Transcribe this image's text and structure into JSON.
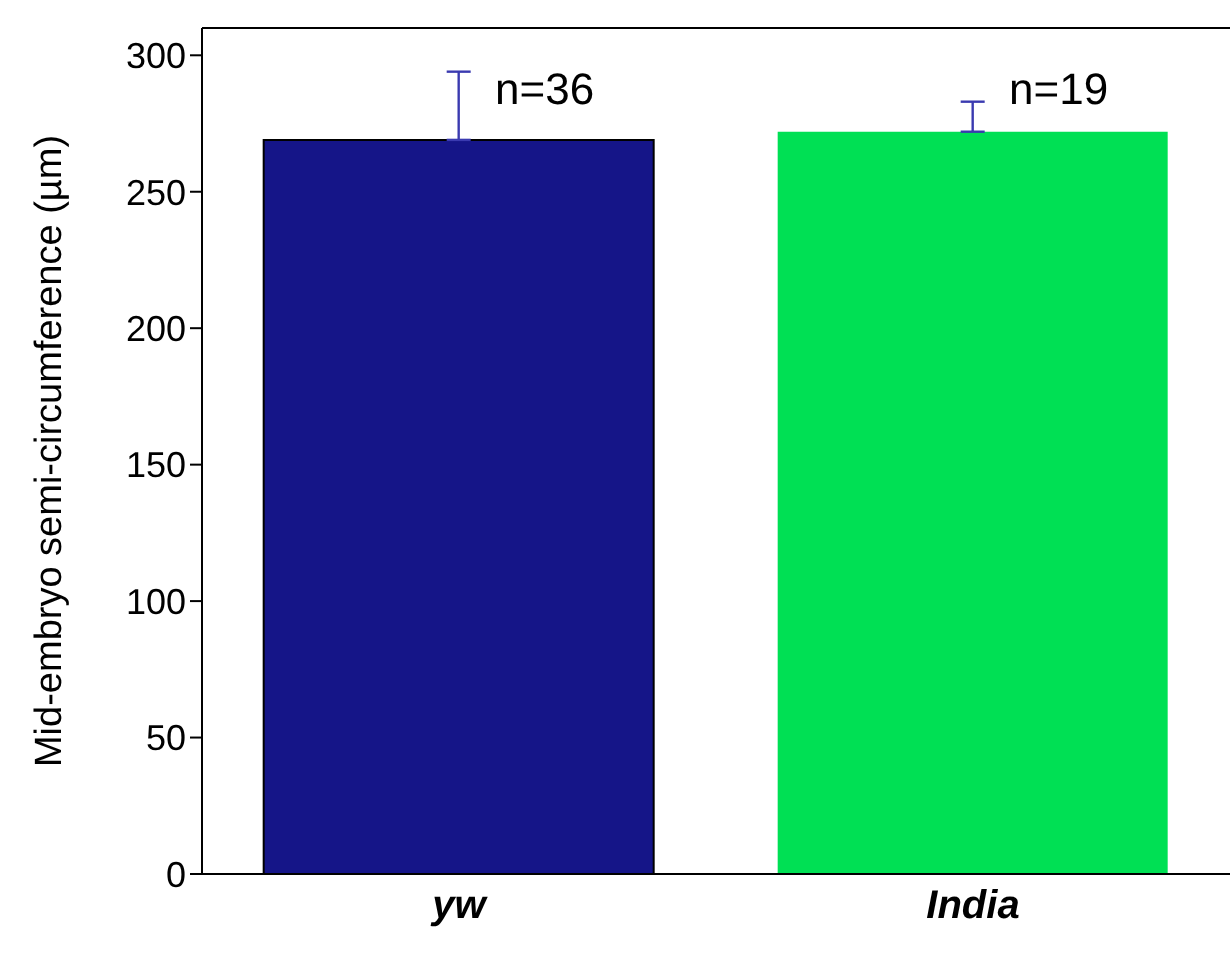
{
  "chart_data": {
    "type": "bar",
    "ylabel": "Mid-embryo semi-circumference (µm)",
    "categories": [
      "yw",
      "India"
    ],
    "values": [
      269,
      272
    ],
    "colors": [
      "#151588",
      "#00e054"
    ],
    "errors": [
      [
        269,
        294
      ],
      [
        272,
        283
      ]
    ],
    "ylim": [
      0,
      310
    ],
    "yticks": [
      0,
      50,
      100,
      150,
      200,
      250,
      300
    ],
    "grid": false,
    "legend": false,
    "annotations": [
      "n=36",
      "n=19"
    ]
  }
}
